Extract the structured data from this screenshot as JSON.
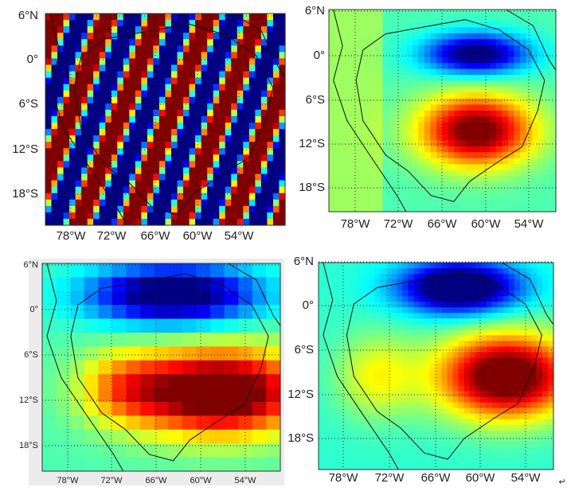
{
  "panels": [
    {
      "lat_labels": [
        "6°N",
        "0°",
        "6°S",
        "12°S",
        "18°S"
      ],
      "lon_labels": [
        "78°W",
        "72°W",
        "66°W",
        "60°W",
        "54°W"
      ]
    },
    {
      "lat_labels": [
        "6°N",
        "0°",
        "6°S",
        "12°S",
        "18°S"
      ],
      "lon_labels": [
        "78°W",
        "72°W",
        "66°W",
        "60°W",
        "54°W"
      ]
    },
    {
      "lat_labels": [
        "6°N",
        "0°",
        "6°S",
        "12°S",
        "18°S"
      ],
      "lon_labels": [
        "78°W",
        "72°W",
        "66°W",
        "60°W",
        "54°W"
      ]
    },
    {
      "lat_labels": [
        "6°N",
        "0°",
        "6°S",
        "12°S",
        "18°S"
      ],
      "lon_labels": [
        "78°W",
        "72°W",
        "66°W",
        "60°W",
        "54°W"
      ]
    }
  ],
  "return_mark": "↵"
}
